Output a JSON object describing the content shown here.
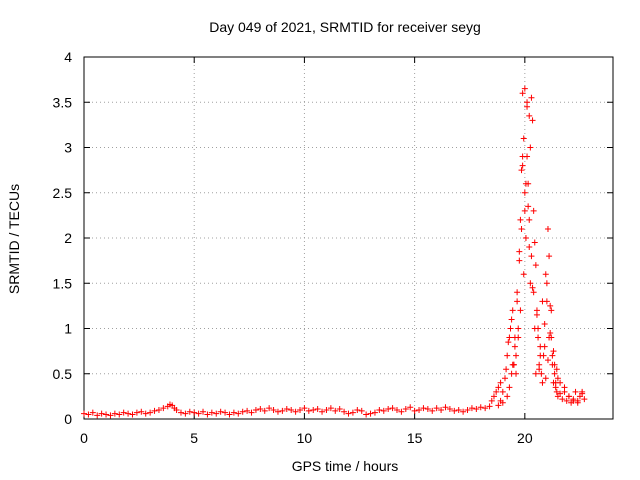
{
  "chart_data": {
    "type": "scatter",
    "title": "Day 049 of 2021, SRMTID for receiver seyg",
    "xlabel": "GPS time / hours",
    "ylabel": "SRMTID / TECUs",
    "xlim": [
      0,
      24
    ],
    "ylim": [
      0,
      4
    ],
    "x_ticks": [
      0,
      5,
      10,
      15,
      20
    ],
    "y_ticks": [
      0,
      0.5,
      1,
      1.5,
      2,
      2.5,
      3,
      3.5,
      4
    ],
    "x_tick_labels": [
      "0",
      "5",
      "10",
      "15",
      "20"
    ],
    "y_tick_labels": [
      "0",
      "0.5",
      "1",
      "1.5",
      "2",
      "2.5",
      "3",
      "3.5",
      "4"
    ],
    "grid": true,
    "marker": "+",
    "color": "#ff0000",
    "series": [
      {
        "name": "SRMTID",
        "x": [
          0.0,
          0.2,
          0.4,
          0.6,
          0.8,
          1.0,
          1.2,
          1.4,
          1.6,
          1.8,
          2.0,
          2.2,
          2.4,
          2.6,
          2.8,
          3.0,
          3.2,
          3.4,
          3.6,
          3.8,
          3.9,
          4.0,
          4.1,
          4.2,
          4.4,
          4.6,
          4.8,
          5.0,
          5.2,
          5.4,
          5.6,
          5.8,
          6.0,
          6.2,
          6.4,
          6.6,
          6.8,
          7.0,
          7.2,
          7.4,
          7.6,
          7.8,
          8.0,
          8.2,
          8.4,
          8.6,
          8.8,
          9.0,
          9.2,
          9.4,
          9.6,
          9.8,
          10.0,
          10.2,
          10.4,
          10.6,
          10.8,
          11.0,
          11.2,
          11.4,
          11.6,
          11.8,
          12.0,
          12.2,
          12.4,
          12.6,
          12.8,
          13.0,
          13.2,
          13.4,
          13.6,
          13.8,
          14.0,
          14.2,
          14.4,
          14.6,
          14.8,
          15.0,
          15.2,
          15.4,
          15.6,
          15.8,
          16.0,
          16.2,
          16.4,
          16.6,
          16.8,
          17.0,
          17.2,
          17.4,
          17.6,
          17.8,
          18.0,
          18.2,
          18.4,
          18.5,
          18.6,
          18.7,
          18.8,
          18.9,
          19.0,
          19.1,
          19.15,
          19.2,
          19.25,
          19.3,
          19.35,
          19.4,
          19.45,
          19.5,
          19.55,
          19.6,
          19.65,
          19.7,
          19.75,
          19.8,
          19.85,
          19.9,
          19.95,
          20.0,
          20.05,
          20.1,
          20.15,
          20.2,
          20.25,
          20.3,
          20.35,
          20.4,
          20.45,
          20.5,
          20.55,
          20.6,
          20.65,
          20.7,
          20.75,
          20.8,
          20.85,
          20.9,
          20.95,
          21.0,
          21.05,
          21.1,
          21.15,
          21.2,
          21.25,
          21.3,
          21.35,
          21.4,
          21.45,
          21.5,
          21.6,
          21.7,
          21.8,
          21.9,
          22.0,
          22.1,
          22.2,
          22.3,
          22.4,
          22.5,
          22.6,
          22.7,
          19.9,
          20.0,
          20.1,
          20.0,
          19.95,
          20.05,
          20.15,
          19.8,
          20.25,
          19.7,
          20.3,
          19.6,
          20.4,
          19.5,
          20.6,
          19.4,
          21.0,
          21.1,
          20.9,
          21.2,
          21.3,
          19.3,
          19.2,
          20.7,
          19.85,
          20.2,
          19.75,
          20.35,
          19.65,
          20.45,
          19.55,
          20.55,
          21.15,
          21.25,
          21.05,
          20.95,
          21.35,
          21.45,
          22.0,
          22.2,
          22.4,
          22.6,
          21.8,
          21.6,
          18.9,
          18.8,
          19.0,
          20.5,
          20.8,
          21.5,
          20.65,
          19.45,
          21.4,
          20.1,
          19.9,
          20.2
        ],
        "y": [
          0.06,
          0.05,
          0.07,
          0.04,
          0.06,
          0.05,
          0.04,
          0.06,
          0.05,
          0.07,
          0.06,
          0.05,
          0.07,
          0.08,
          0.06,
          0.07,
          0.09,
          0.1,
          0.12,
          0.14,
          0.16,
          0.15,
          0.12,
          0.1,
          0.07,
          0.06,
          0.08,
          0.07,
          0.06,
          0.08,
          0.05,
          0.07,
          0.06,
          0.08,
          0.07,
          0.05,
          0.07,
          0.06,
          0.08,
          0.09,
          0.07,
          0.1,
          0.11,
          0.09,
          0.12,
          0.1,
          0.08,
          0.09,
          0.11,
          0.1,
          0.08,
          0.1,
          0.12,
          0.09,
          0.1,
          0.11,
          0.08,
          0.1,
          0.12,
          0.09,
          0.11,
          0.08,
          0.06,
          0.07,
          0.1,
          0.09,
          0.05,
          0.06,
          0.07,
          0.1,
          0.09,
          0.11,
          0.12,
          0.1,
          0.08,
          0.11,
          0.13,
          0.09,
          0.1,
          0.12,
          0.11,
          0.09,
          0.12,
          0.1,
          0.13,
          0.11,
          0.09,
          0.1,
          0.08,
          0.1,
          0.12,
          0.11,
          0.13,
          0.12,
          0.14,
          0.2,
          0.25,
          0.3,
          0.35,
          0.4,
          0.3,
          0.45,
          0.55,
          0.7,
          0.85,
          0.9,
          1.0,
          1.1,
          1.2,
          0.6,
          0.8,
          0.5,
          1.4,
          0.9,
          1.85,
          1.2,
          2.1,
          2.8,
          1.6,
          3.65,
          2.6,
          3.5,
          2.35,
          2.2,
          3.0,
          3.55,
          3.3,
          2.3,
          1.95,
          1.7,
          1.2,
          0.9,
          0.6,
          0.8,
          0.5,
          1.3,
          0.7,
          1.05,
          1.6,
          1.5,
          2.1,
          1.8,
          1.25,
          0.9,
          0.6,
          0.4,
          0.5,
          0.35,
          0.3,
          0.25,
          0.28,
          0.22,
          0.3,
          0.2,
          0.25,
          0.18,
          0.22,
          0.3,
          0.2,
          0.25,
          0.28,
          0.22,
          2.9,
          2.5,
          2.9,
          2.3,
          3.1,
          2.0,
          2.6,
          2.2,
          1.5,
          1.0,
          1.8,
          0.7,
          1.4,
          0.6,
          1.0,
          0.5,
          1.3,
          0.9,
          0.8,
          1.2,
          0.75,
          0.35,
          0.25,
          0.7,
          2.75,
          1.9,
          1.75,
          1.45,
          1.3,
          1.0,
          0.9,
          1.15,
          0.95,
          0.7,
          0.65,
          0.45,
          0.6,
          0.55,
          0.25,
          0.2,
          0.18,
          0.3,
          0.35,
          0.4,
          0.2,
          0.15,
          0.18,
          0.5,
          0.4,
          0.45,
          0.55,
          0.6,
          0.4,
          3.45,
          3.6,
          3.35
        ]
      }
    ]
  }
}
